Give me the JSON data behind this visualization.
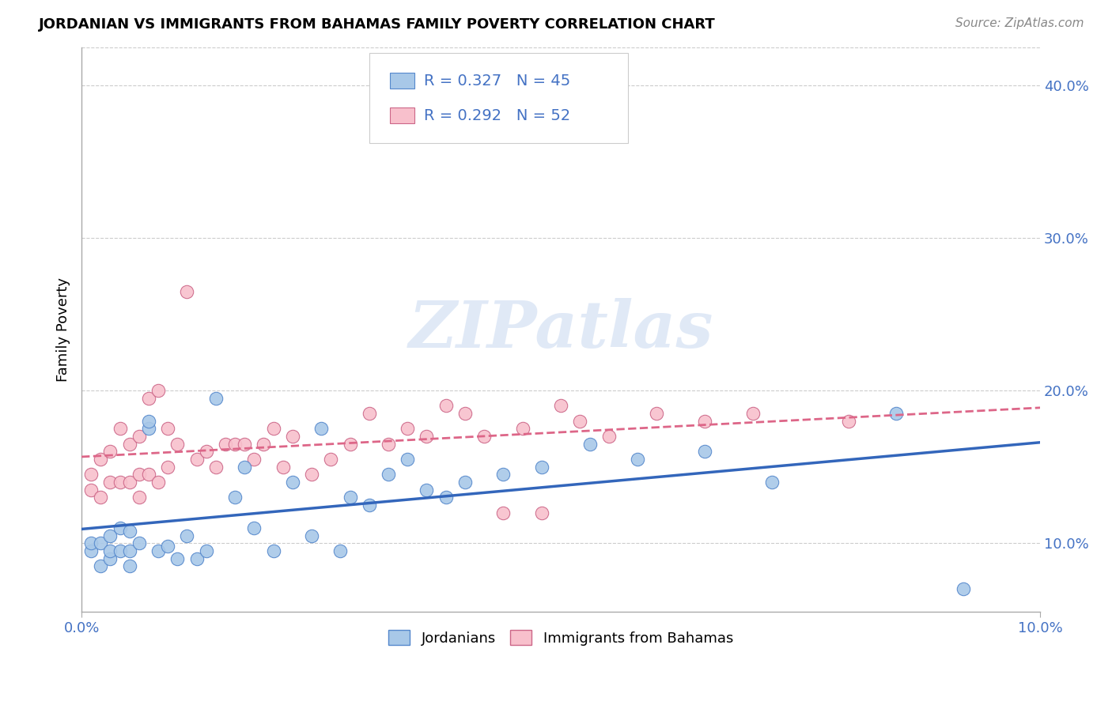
{
  "title": "JORDANIAN VS IMMIGRANTS FROM BAHAMAS FAMILY POVERTY CORRELATION CHART",
  "source": "Source: ZipAtlas.com",
  "ylabel": "Family Poverty",
  "legend_label1": "Jordanians",
  "legend_label2": "Immigrants from Bahamas",
  "R1": "0.327",
  "N1": "45",
  "R2": "0.292",
  "N2": "52",
  "color_blue_fill": "#a8c8e8",
  "color_blue_edge": "#5588cc",
  "color_pink_fill": "#f8c0cc",
  "color_pink_edge": "#cc6688",
  "color_blue_line": "#3366bb",
  "color_pink_line": "#dd6688",
  "color_legend_text": "#4472c4",
  "watermark": "ZIPatlas",
  "yticks": [
    0.1,
    0.2,
    0.3,
    0.4
  ],
  "ytick_labels": [
    "10.0%",
    "20.0%",
    "30.0%",
    "40.0%"
  ],
  "xlim": [
    0.0,
    0.1
  ],
  "ylim": [
    0.055,
    0.425
  ],
  "blue_scatter_x": [
    0.001,
    0.001,
    0.002,
    0.002,
    0.003,
    0.003,
    0.003,
    0.004,
    0.004,
    0.005,
    0.005,
    0.005,
    0.006,
    0.007,
    0.007,
    0.008,
    0.009,
    0.01,
    0.011,
    0.012,
    0.013,
    0.014,
    0.016,
    0.017,
    0.018,
    0.02,
    0.022,
    0.024,
    0.025,
    0.027,
    0.028,
    0.03,
    0.032,
    0.034,
    0.036,
    0.038,
    0.04,
    0.044,
    0.048,
    0.053,
    0.058,
    0.065,
    0.072,
    0.085,
    0.092
  ],
  "blue_scatter_y": [
    0.095,
    0.1,
    0.085,
    0.1,
    0.09,
    0.095,
    0.105,
    0.095,
    0.11,
    0.085,
    0.095,
    0.108,
    0.1,
    0.175,
    0.18,
    0.095,
    0.098,
    0.09,
    0.105,
    0.09,
    0.095,
    0.195,
    0.13,
    0.15,
    0.11,
    0.095,
    0.14,
    0.105,
    0.175,
    0.095,
    0.13,
    0.125,
    0.145,
    0.155,
    0.135,
    0.13,
    0.14,
    0.145,
    0.15,
    0.165,
    0.155,
    0.16,
    0.14,
    0.185,
    0.07
  ],
  "pink_scatter_x": [
    0.001,
    0.001,
    0.002,
    0.002,
    0.003,
    0.003,
    0.004,
    0.004,
    0.005,
    0.005,
    0.006,
    0.006,
    0.006,
    0.007,
    0.007,
    0.008,
    0.008,
    0.009,
    0.009,
    0.01,
    0.011,
    0.012,
    0.013,
    0.014,
    0.015,
    0.016,
    0.017,
    0.018,
    0.019,
    0.02,
    0.021,
    0.022,
    0.024,
    0.026,
    0.028,
    0.03,
    0.032,
    0.034,
    0.036,
    0.038,
    0.04,
    0.042,
    0.044,
    0.046,
    0.048,
    0.05,
    0.052,
    0.055,
    0.06,
    0.065,
    0.07,
    0.08
  ],
  "pink_scatter_y": [
    0.135,
    0.145,
    0.13,
    0.155,
    0.14,
    0.16,
    0.14,
    0.175,
    0.14,
    0.165,
    0.13,
    0.145,
    0.17,
    0.145,
    0.195,
    0.14,
    0.2,
    0.15,
    0.175,
    0.165,
    0.265,
    0.155,
    0.16,
    0.15,
    0.165,
    0.165,
    0.165,
    0.155,
    0.165,
    0.175,
    0.15,
    0.17,
    0.145,
    0.155,
    0.165,
    0.185,
    0.165,
    0.175,
    0.17,
    0.19,
    0.185,
    0.17,
    0.12,
    0.175,
    0.12,
    0.19,
    0.18,
    0.17,
    0.185,
    0.18,
    0.185,
    0.18
  ]
}
